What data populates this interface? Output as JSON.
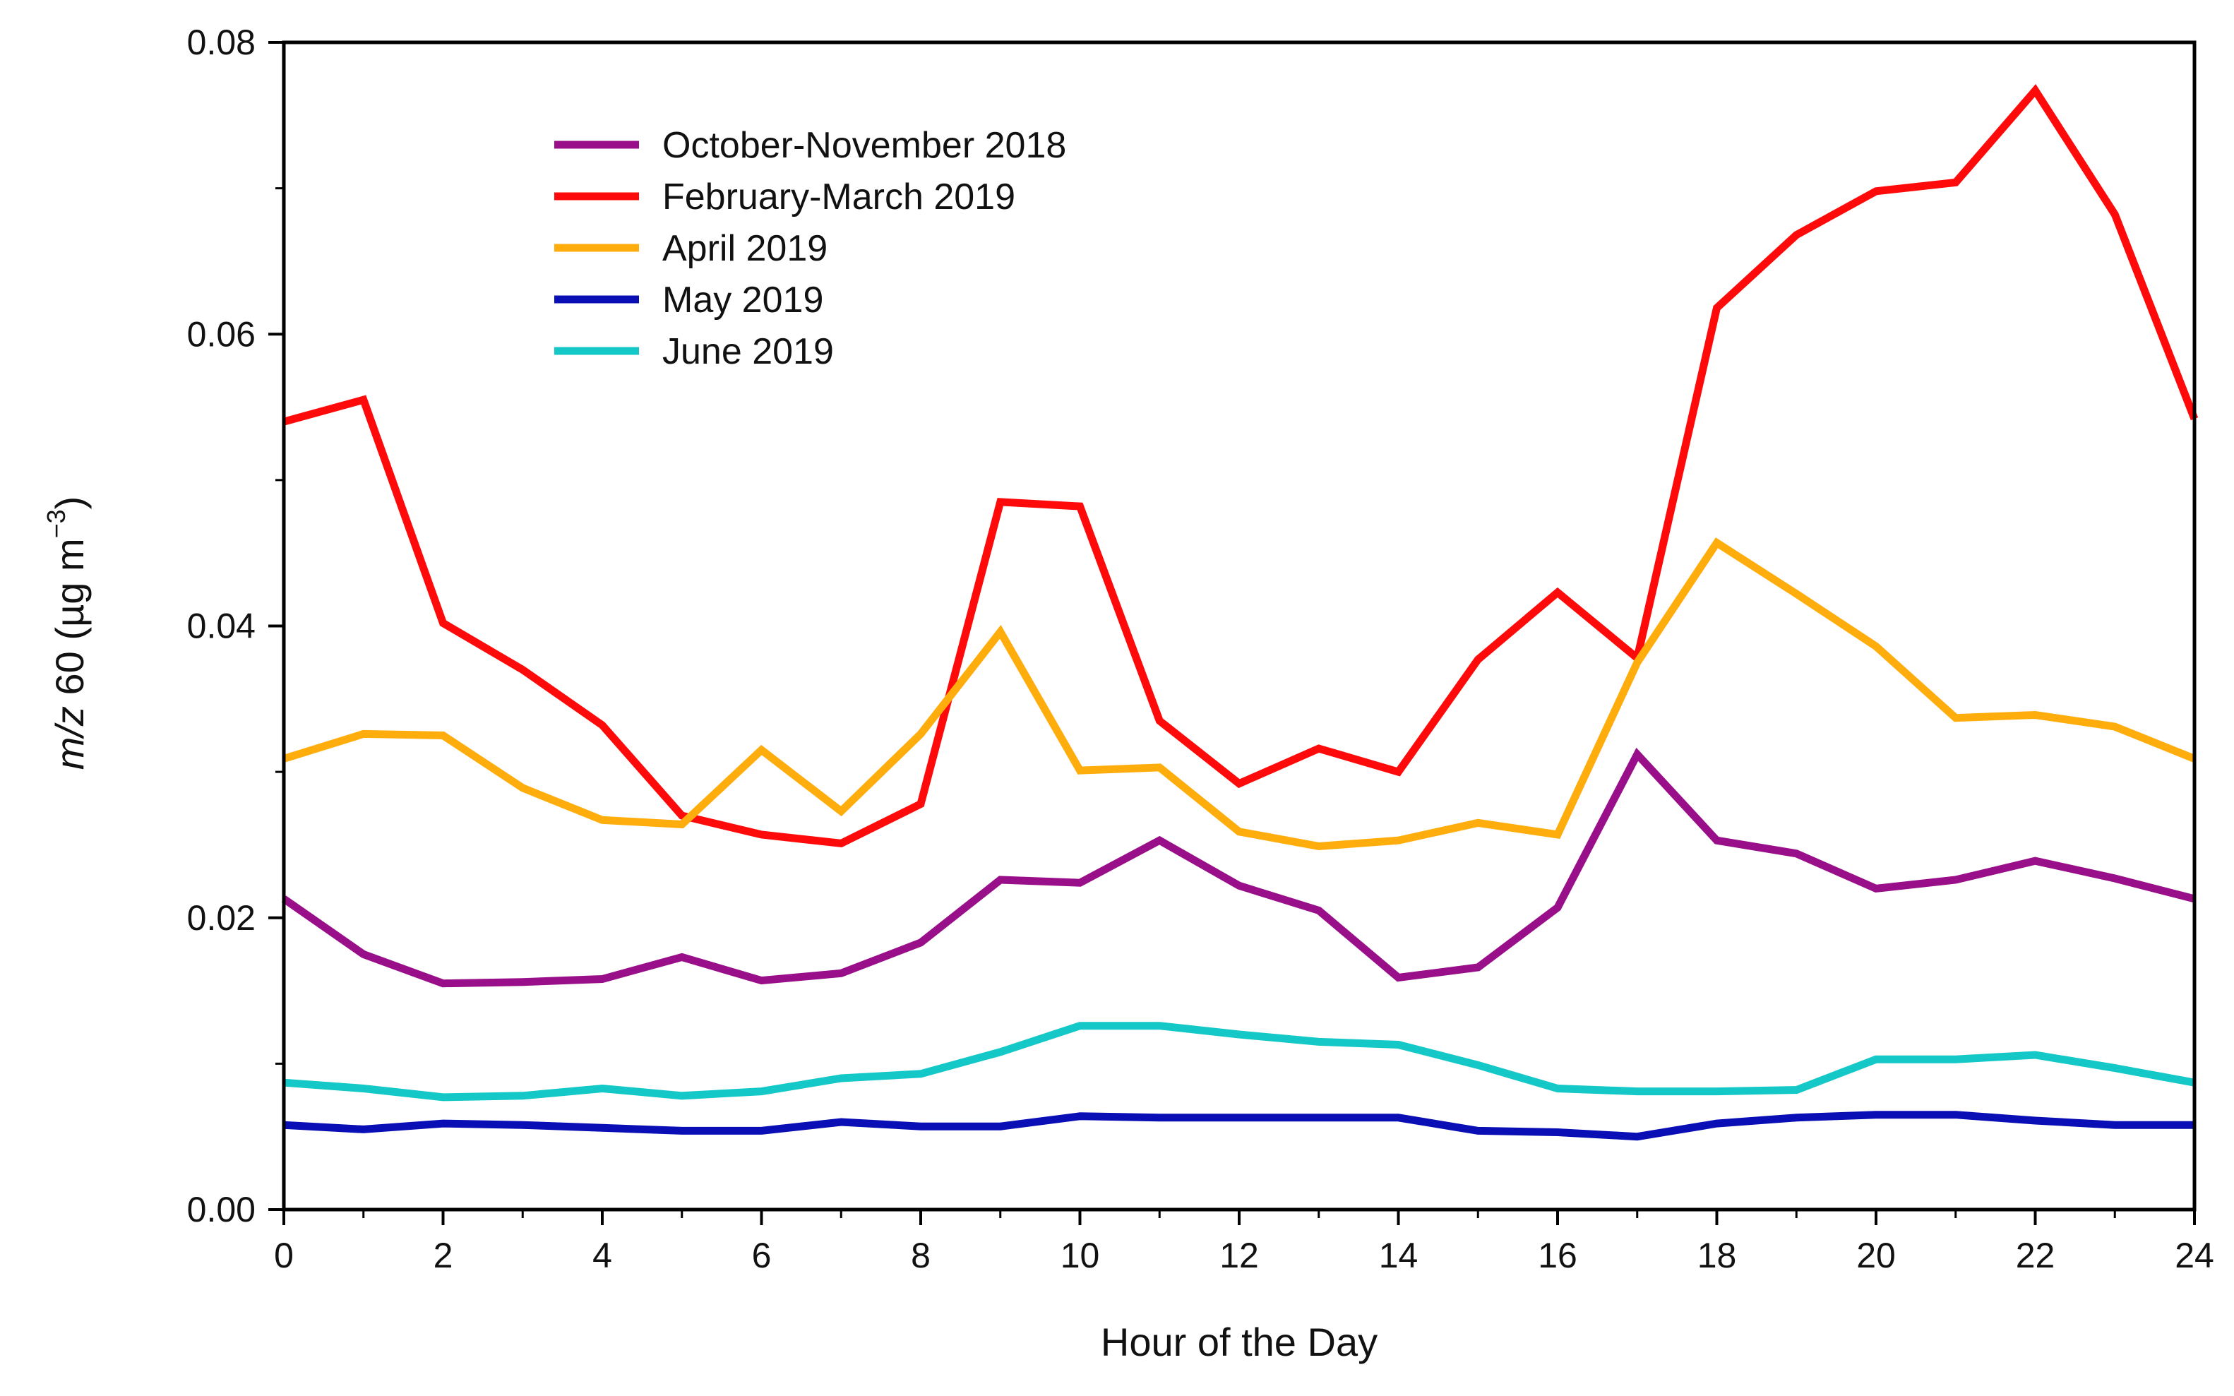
{
  "chart_data": {
    "type": "line",
    "title": "",
    "xlabel": "Hour of the Day",
    "ylabel": {
      "italic": "m/z",
      "main": " 60 (µg m",
      "superscript": "−3",
      "close": ")"
    },
    "xlim": [
      0,
      24
    ],
    "ylim": [
      0,
      0.08
    ],
    "x_ticks": [
      0,
      2,
      4,
      6,
      8,
      10,
      12,
      14,
      16,
      18,
      20,
      22,
      24
    ],
    "x_tick_labels": [
      "0",
      "2",
      "4",
      "6",
      "8",
      "10",
      "12",
      "14",
      "16",
      "18",
      "20",
      "22",
      "24"
    ],
    "y_ticks": [
      0,
      0.02,
      0.04,
      0.06,
      0.08
    ],
    "y_tick_labels": [
      "0.00",
      "0.02",
      "0.04",
      "0.06",
      "0.08"
    ],
    "grid": false,
    "legend_position": "top-left",
    "x": [
      0,
      1,
      2,
      3,
      4,
      5,
      6,
      7,
      8,
      9,
      10,
      11,
      12,
      13,
      14,
      15,
      16,
      17,
      18,
      19,
      20,
      21,
      22,
      23,
      24
    ],
    "series": [
      {
        "name": "October-November 2018",
        "color": "#990f8a",
        "values": [
          0.0213,
          0.0175,
          0.0155,
          0.0156,
          0.0158,
          0.0173,
          0.0157,
          0.0162,
          0.0183,
          0.0226,
          0.0224,
          0.0253,
          0.0222,
          0.0205,
          0.0159,
          0.0166,
          0.0207,
          0.0312,
          0.0253,
          0.0244,
          0.022,
          0.0226,
          0.0239,
          0.0227,
          0.0213
        ]
      },
      {
        "name": "February-March 2019",
        "color": "#ff0a0a",
        "values": [
          0.054,
          0.0555,
          0.0402,
          0.037,
          0.0332,
          0.027,
          0.0257,
          0.0251,
          0.0278,
          0.0485,
          0.0482,
          0.0335,
          0.0292,
          0.0316,
          0.03,
          0.0377,
          0.0423,
          0.0378,
          0.0618,
          0.0668,
          0.0698,
          0.0704,
          0.0767,
          0.0682,
          0.0542
        ]
      },
      {
        "name": "April 2019",
        "color": "#ffad0d",
        "values": [
          0.0309,
          0.0326,
          0.0325,
          0.0289,
          0.0267,
          0.0264,
          0.0315,
          0.0273,
          0.0326,
          0.0396,
          0.0301,
          0.0303,
          0.0259,
          0.0249,
          0.0253,
          0.0265,
          0.0257,
          0.0375,
          0.0457,
          0.0422,
          0.0386,
          0.0337,
          0.0339,
          0.0331,
          0.0309
        ]
      },
      {
        "name": "May 2019",
        "color": "#0a0fb5",
        "values": [
          0.0058,
          0.0055,
          0.0059,
          0.0058,
          0.0056,
          0.0054,
          0.0054,
          0.006,
          0.0057,
          0.0057,
          0.0064,
          0.0063,
          0.0063,
          0.0063,
          0.0063,
          0.0054,
          0.0053,
          0.005,
          0.0059,
          0.0063,
          0.0065,
          0.0065,
          0.0061,
          0.0058,
          0.0058
        ]
      },
      {
        "name": "June 2019",
        "color": "#14c8c8",
        "values": [
          0.0087,
          0.0083,
          0.0077,
          0.0078,
          0.0083,
          0.0078,
          0.0081,
          0.009,
          0.0093,
          0.0108,
          0.0126,
          0.0126,
          0.012,
          0.0115,
          0.0113,
          0.0099,
          0.0083,
          0.0081,
          0.0081,
          0.0082,
          0.0103,
          0.0103,
          0.0106,
          0.0097,
          0.0087
        ]
      }
    ]
  }
}
